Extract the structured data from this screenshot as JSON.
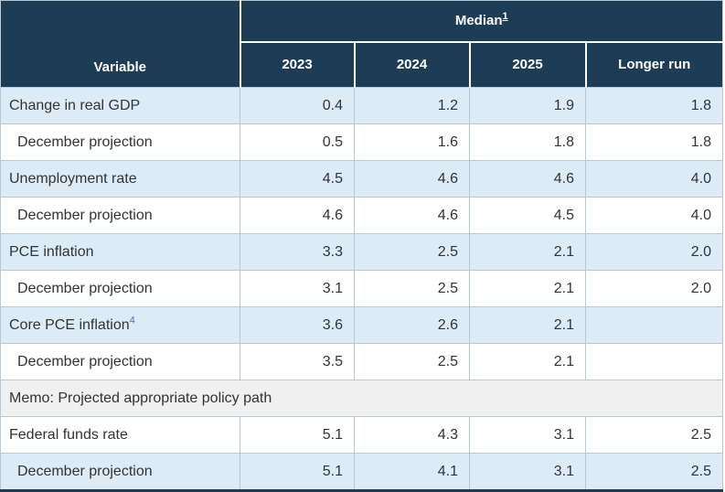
{
  "colors": {
    "navy": "#1d3c55",
    "rowblue": "#ddebf7",
    "memogray": "#f0f0f0",
    "border": "#b2c8dc",
    "text": "#333333",
    "link": "#3c77af"
  },
  "table": {
    "header": {
      "variable_label": "Variable",
      "median_label": "Median",
      "median_footnote": "1",
      "years": [
        "2023",
        "2024",
        "2025",
        "Longer run"
      ]
    },
    "rows": [
      {
        "label": "Change in real GDP",
        "indent": false,
        "shade": "blue",
        "values": [
          "0.4",
          "1.2",
          "1.9",
          "1.8"
        ]
      },
      {
        "label": "December projection",
        "indent": true,
        "shade": "white",
        "values": [
          "0.5",
          "1.6",
          "1.8",
          "1.8"
        ]
      },
      {
        "label": "Unemployment rate",
        "indent": false,
        "shade": "blue",
        "values": [
          "4.5",
          "4.6",
          "4.6",
          "4.0"
        ]
      },
      {
        "label": "December projection",
        "indent": true,
        "shade": "white",
        "values": [
          "4.6",
          "4.6",
          "4.5",
          "4.0"
        ]
      },
      {
        "label": "PCE inflation",
        "indent": false,
        "shade": "blue",
        "values": [
          "3.3",
          "2.5",
          "2.1",
          "2.0"
        ]
      },
      {
        "label": "December projection",
        "indent": true,
        "shade": "white",
        "values": [
          "3.1",
          "2.5",
          "2.1",
          "2.0"
        ]
      },
      {
        "label": "Core PCE inflation",
        "footnote": "4",
        "indent": false,
        "shade": "blue",
        "values": [
          "3.6",
          "2.6",
          "2.1",
          ""
        ]
      },
      {
        "label": "December projection",
        "indent": true,
        "shade": "white",
        "values": [
          "3.5",
          "2.5",
          "2.1",
          ""
        ]
      },
      {
        "label": "Memo: Projected appropriate policy path",
        "type": "memo"
      },
      {
        "label": "Federal funds rate",
        "indent": false,
        "shade": "white",
        "values": [
          "5.1",
          "4.3",
          "3.1",
          "2.5"
        ]
      },
      {
        "label": "December projection",
        "indent": true,
        "shade": "blue",
        "values": [
          "5.1",
          "4.1",
          "3.1",
          "2.5"
        ]
      }
    ]
  },
  "chart_data": {
    "type": "table",
    "title": "Median1",
    "columns": [
      "Variable",
      "2023",
      "2024",
      "2025",
      "Longer run"
    ],
    "rows": [
      [
        "Change in real GDP",
        "0.4",
        "1.2",
        "1.9",
        "1.8"
      ],
      [
        "December projection",
        "0.5",
        "1.6",
        "1.8",
        "1.8"
      ],
      [
        "Unemployment rate",
        "4.5",
        "4.6",
        "4.6",
        "4.0"
      ],
      [
        "December projection",
        "4.6",
        "4.6",
        "4.5",
        "4.0"
      ],
      [
        "PCE inflation",
        "3.3",
        "2.5",
        "2.1",
        "2.0"
      ],
      [
        "December projection",
        "3.1",
        "2.5",
        "2.1",
        "2.0"
      ],
      [
        "Core PCE inflation4",
        "3.6",
        "2.6",
        "2.1",
        ""
      ],
      [
        "December projection",
        "3.5",
        "2.5",
        "2.1",
        ""
      ],
      [
        "Memo: Projected appropriate policy path",
        "",
        "",
        "",
        ""
      ],
      [
        "Federal funds rate",
        "5.1",
        "4.3",
        "3.1",
        "2.5"
      ],
      [
        "December projection",
        "5.1",
        "4.1",
        "3.1",
        "2.5"
      ]
    ]
  }
}
